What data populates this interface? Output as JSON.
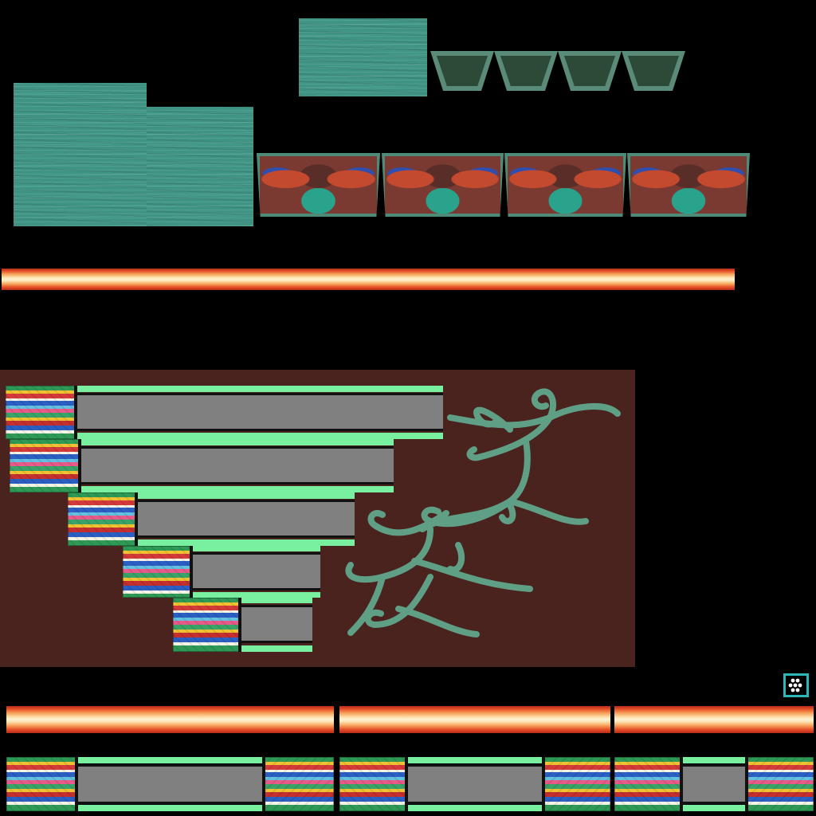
{
  "texture_atlas": {
    "background": "#000000",
    "colors": {
      "teal_wood": "#3f9484",
      "brown_panel": "#4a231f",
      "vine": "#5f9f86",
      "bar_green": "#78f0a0",
      "bar_gray": "#808080",
      "badge_border": "#2ab8b8"
    },
    "decorative_panels": [
      "panel-1",
      "panel-2",
      "panel-3",
      "panel-4"
    ],
    "trapezoids": [
      "trap-1",
      "trap-2",
      "trap-3",
      "trap-4"
    ],
    "stair_bars": [
      "bar-1",
      "bar-2",
      "bar-3",
      "bar-4",
      "bar-5"
    ],
    "icon": "dots-icon"
  }
}
